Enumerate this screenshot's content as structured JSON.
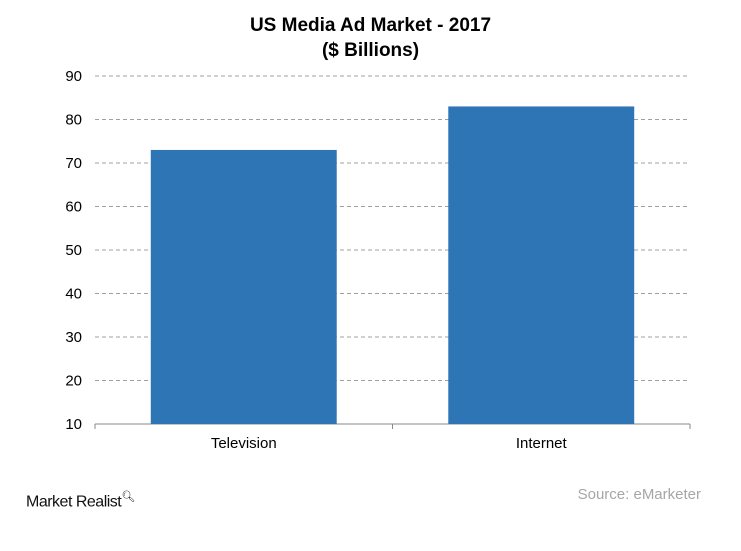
{
  "chart_data": {
    "type": "bar",
    "title": "US Media Ad Market - 2017",
    "subtitle": "($ Billions)",
    "categories": [
      "Television",
      "Internet"
    ],
    "values": [
      73,
      83
    ],
    "ylim": [
      10,
      90
    ],
    "yticks": [
      10,
      20,
      30,
      40,
      50,
      60,
      70,
      80,
      90
    ],
    "grid": true,
    "bar_color": "#2e75b6"
  },
  "footer": {
    "logo": "Market Realist",
    "source": "Source: eMarketer"
  }
}
